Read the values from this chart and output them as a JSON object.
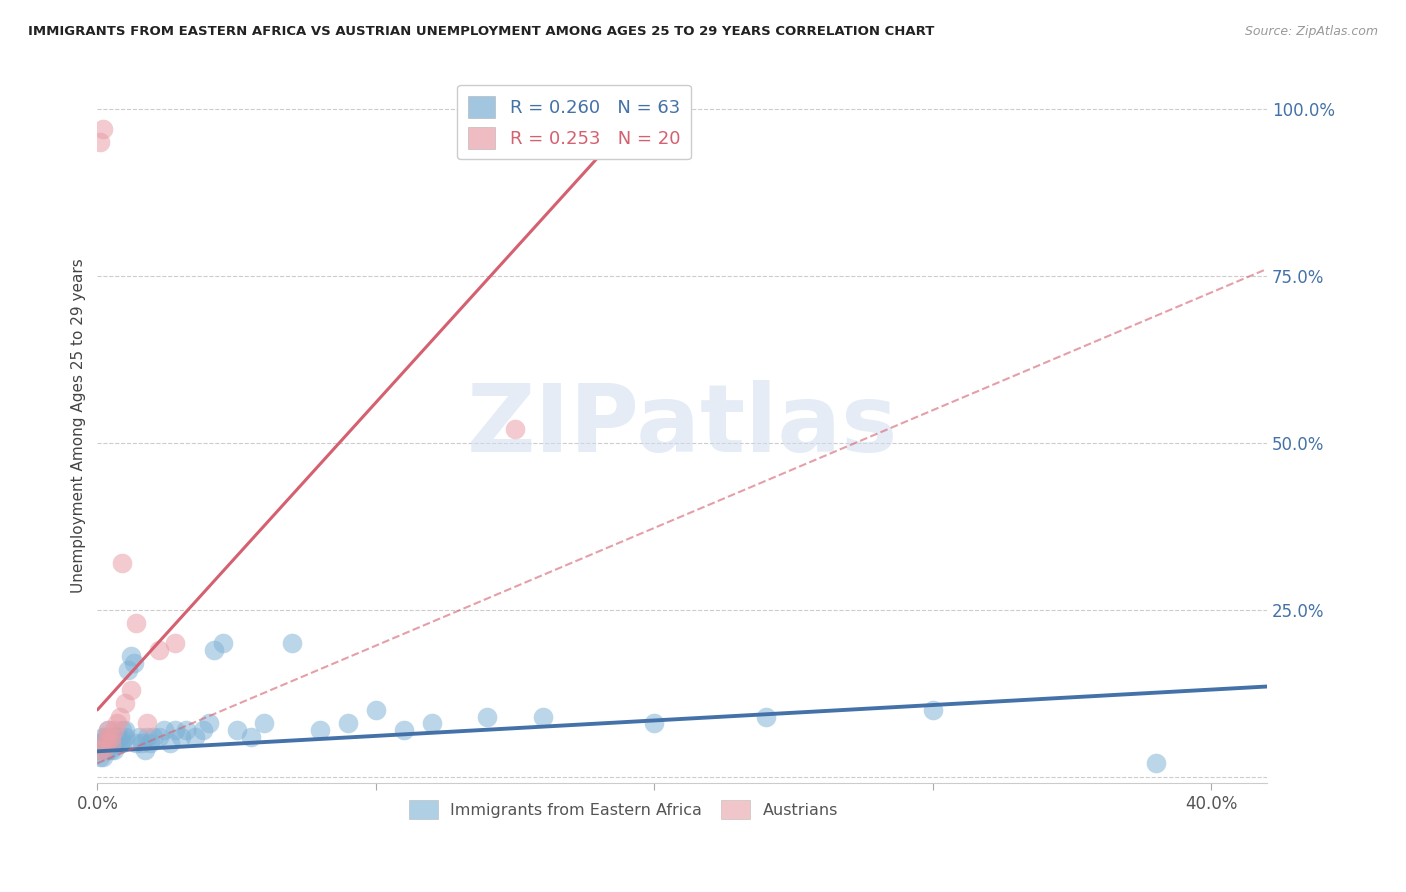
{
  "title": "IMMIGRANTS FROM EASTERN AFRICA VS AUSTRIAN UNEMPLOYMENT AMONG AGES 25 TO 29 YEARS CORRELATION CHART",
  "source": "Source: ZipAtlas.com",
  "ylabel": "Unemployment Among Ages 25 to 29 years",
  "xlim": [
    0.0,
    0.42
  ],
  "ylim": [
    -0.01,
    1.06
  ],
  "xticks": [
    0.0,
    0.1,
    0.2,
    0.3,
    0.4
  ],
  "xticklabels_show": [
    "0.0%",
    "40.0%"
  ],
  "xticklabels_pos": [
    0.0,
    0.4
  ],
  "yticks": [
    0.0,
    0.25,
    0.5,
    0.75,
    1.0
  ],
  "yticklabels": [
    "",
    "25.0%",
    "50.0%",
    "75.0%",
    "100.0%"
  ],
  "blue_color": "#7bafd4",
  "pink_color": "#e8a0a8",
  "trend_blue_color": "#4472a8",
  "trend_pink_color": "#d46070",
  "R_blue": 0.26,
  "N_blue": 63,
  "R_pink": 0.253,
  "N_pink": 20,
  "watermark": "ZIPatlas",
  "watermark_color": "#d0ddf0",
  "blue_scatter_x": [
    0.001,
    0.001,
    0.001,
    0.002,
    0.002,
    0.002,
    0.002,
    0.003,
    0.003,
    0.003,
    0.004,
    0.004,
    0.004,
    0.005,
    0.005,
    0.005,
    0.006,
    0.006,
    0.006,
    0.007,
    0.007,
    0.008,
    0.008,
    0.009,
    0.009,
    0.01,
    0.01,
    0.011,
    0.012,
    0.013,
    0.014,
    0.015,
    0.016,
    0.017,
    0.018,
    0.019,
    0.02,
    0.022,
    0.024,
    0.026,
    0.028,
    0.03,
    0.032,
    0.035,
    0.038,
    0.04,
    0.042,
    0.045,
    0.05,
    0.055,
    0.06,
    0.07,
    0.08,
    0.09,
    0.1,
    0.11,
    0.12,
    0.14,
    0.16,
    0.2,
    0.24,
    0.3,
    0.38
  ],
  "blue_scatter_y": [
    0.03,
    0.04,
    0.05,
    0.03,
    0.04,
    0.05,
    0.06,
    0.04,
    0.05,
    0.06,
    0.04,
    0.05,
    0.07,
    0.04,
    0.05,
    0.06,
    0.04,
    0.05,
    0.06,
    0.05,
    0.06,
    0.05,
    0.06,
    0.05,
    0.07,
    0.06,
    0.07,
    0.16,
    0.18,
    0.17,
    0.05,
    0.06,
    0.05,
    0.04,
    0.06,
    0.05,
    0.06,
    0.06,
    0.07,
    0.05,
    0.07,
    0.06,
    0.07,
    0.06,
    0.07,
    0.08,
    0.19,
    0.2,
    0.07,
    0.06,
    0.08,
    0.2,
    0.07,
    0.08,
    0.1,
    0.07,
    0.08,
    0.09,
    0.09,
    0.08,
    0.09,
    0.1,
    0.02
  ],
  "pink_scatter_x": [
    0.001,
    0.001,
    0.002,
    0.002,
    0.003,
    0.003,
    0.004,
    0.005,
    0.005,
    0.006,
    0.007,
    0.008,
    0.009,
    0.01,
    0.012,
    0.014,
    0.018,
    0.022,
    0.028,
    0.15
  ],
  "pink_scatter_y": [
    0.04,
    0.95,
    0.04,
    0.97,
    0.05,
    0.06,
    0.07,
    0.05,
    0.06,
    0.07,
    0.08,
    0.09,
    0.32,
    0.11,
    0.13,
    0.23,
    0.08,
    0.19,
    0.2,
    0.52
  ],
  "blue_trend_x": [
    0.0,
    0.42
  ],
  "blue_trend_y": [
    0.038,
    0.135
  ],
  "pink_trend_x": [
    0.0,
    0.2
  ],
  "pink_trend_y": [
    0.1,
    1.02
  ],
  "dashed_trend_x": [
    0.0,
    0.42
  ],
  "dashed_trend_y": [
    0.02,
    0.76
  ]
}
